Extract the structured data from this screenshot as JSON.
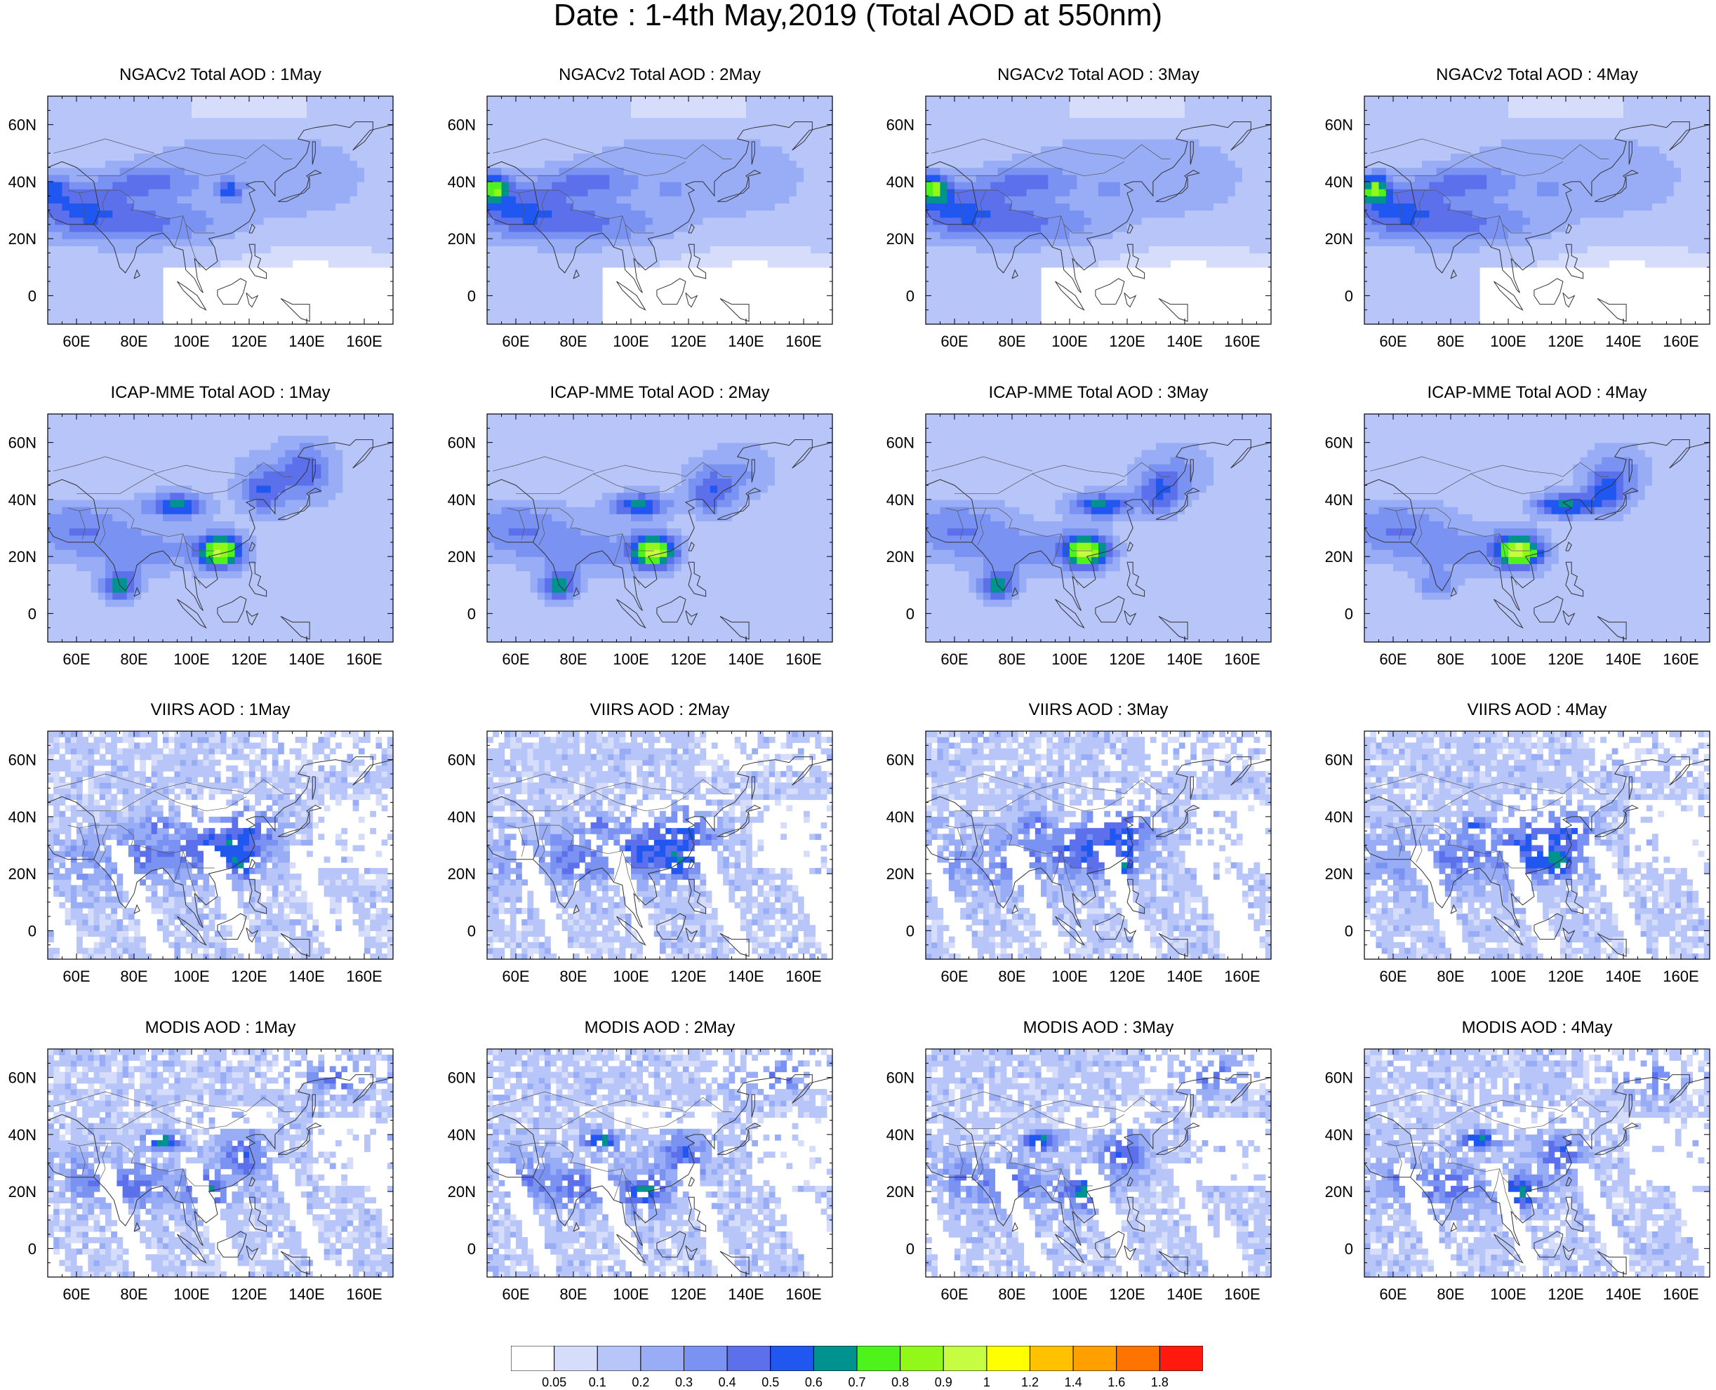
{
  "title": "Date : 1-4th May,2019 (Total AOD at 550nm)",
  "panels": [
    {
      "title": "NGACv2 Total AOD : 1May",
      "source": "NGACv2",
      "day": 1
    },
    {
      "title": "NGACv2 Total AOD : 2May",
      "source": "NGACv2",
      "day": 2
    },
    {
      "title": "NGACv2 Total AOD : 3May",
      "source": "NGACv2",
      "day": 3
    },
    {
      "title": "NGACv2 Total AOD : 4May",
      "source": "NGACv2",
      "day": 4
    },
    {
      "title": "ICAP-MME Total AOD : 1May",
      "source": "ICAP-MME",
      "day": 1
    },
    {
      "title": "ICAP-MME Total AOD : 2May",
      "source": "ICAP-MME",
      "day": 2
    },
    {
      "title": "ICAP-MME Total AOD : 3May",
      "source": "ICAP-MME",
      "day": 3
    },
    {
      "title": "ICAP-MME Total AOD : 4May",
      "source": "ICAP-MME",
      "day": 4
    },
    {
      "title": "VIIRS AOD : 1May",
      "source": "VIIRS",
      "day": 1
    },
    {
      "title": "VIIRS AOD : 2May",
      "source": "VIIRS",
      "day": 2
    },
    {
      "title": "VIIRS AOD : 3May",
      "source": "VIIRS",
      "day": 3
    },
    {
      "title": "VIIRS AOD : 4May",
      "source": "VIIRS",
      "day": 4
    },
    {
      "title": "MODIS AOD : 1May",
      "source": "MODIS",
      "day": 1
    },
    {
      "title": "MODIS AOD : 2May",
      "source": "MODIS",
      "day": 2
    },
    {
      "title": "MODIS AOD : 3May",
      "source": "MODIS",
      "day": 3
    },
    {
      "title": "MODIS AOD : 4May",
      "source": "MODIS",
      "day": 4
    }
  ],
  "axes": {
    "lon_ticks": [
      "60E",
      "80E",
      "100E",
      "120E",
      "140E",
      "160E"
    ],
    "lon_values": [
      60,
      80,
      100,
      120,
      140,
      160
    ],
    "lat_ticks": [
      "60N",
      "40N",
      "20N",
      "0"
    ],
    "lat_values": [
      60,
      40,
      20,
      0
    ],
    "lon_range": [
      50,
      170
    ],
    "lat_range": [
      -10,
      70
    ]
  },
  "colorbar": {
    "labels": [
      "0.05",
      "0.1",
      "0.2",
      "0.3",
      "0.4",
      "0.5",
      "0.6",
      "0.7",
      "0.8",
      "0.9",
      "1",
      "1.2",
      "1.4",
      "1.6",
      "1.8"
    ],
    "colors": [
      "#ffffff",
      "#d5ddfb",
      "#b7c5f8",
      "#98adf6",
      "#7a92f2",
      "#5c70ec",
      "#1f57f0",
      "#00928f",
      "#4ef31c",
      "#92f81a",
      "#c6fc42",
      "#ffff00",
      "#ffc100",
      "#ffa000",
      "#ff7300",
      "#ff1a0d"
    ]
  }
}
